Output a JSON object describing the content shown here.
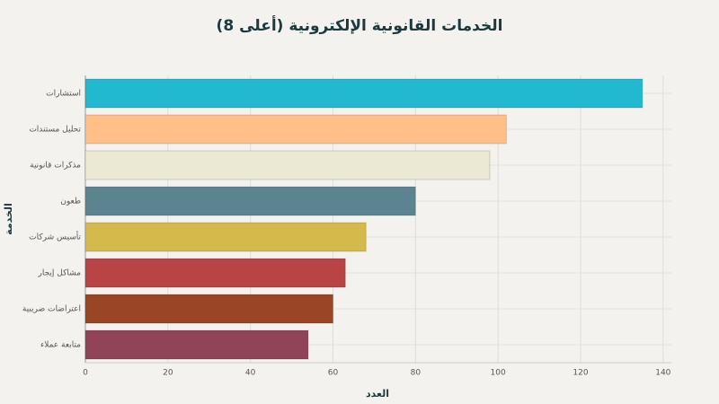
{
  "chart_data": {
    "type": "hbar",
    "title": "الخدمات القانونية الإلكترونية (أعلى 8)",
    "x_label": "العدد",
    "y_label": "الخدمة",
    "categories": [
      "استشارات",
      "تحليل مستندات",
      "مذكرات قانونية",
      "طعون",
      "تأسيس شركات",
      "مشاكل إيجار",
      "اعتراضات ضريبية",
      "متابعة عملاء"
    ],
    "values": [
      135,
      102,
      98,
      80,
      68,
      63,
      60,
      54
    ],
    "colors": [
      "#22b8cf",
      "#ffbf87",
      "#ebe8d3",
      "#5b8490",
      "#d4b94c",
      "#b84445",
      "#9a4626",
      "#914457"
    ],
    "xlim": [
      0,
      142
    ],
    "xticks": [
      0,
      20,
      40,
      60,
      80,
      100,
      120,
      140
    ],
    "grid": true
  }
}
